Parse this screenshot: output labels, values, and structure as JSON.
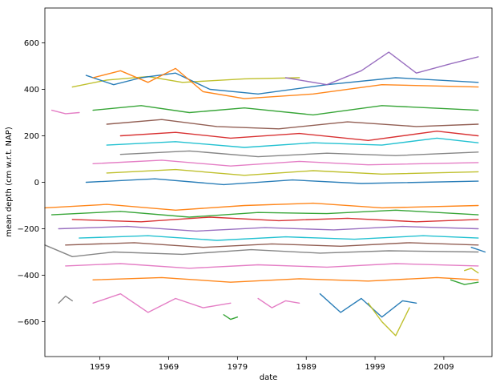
{
  "chart_data": {
    "type": "line",
    "xlabel": "date",
    "ylabel": "mean depth (cm w.r.t. NAP)",
    "xlim": [
      1951.0,
      2016.0
    ],
    "ylim": [
      -750,
      750
    ],
    "x_ticks": [
      {
        "value": 1959,
        "label": "1959"
      },
      {
        "value": 1969,
        "label": "1969"
      },
      {
        "value": 1979,
        "label": "1979"
      },
      {
        "value": 1989,
        "label": "1989"
      },
      {
        "value": 1999,
        "label": "1999"
      },
      {
        "value": 2009,
        "label": "2009"
      }
    ],
    "y_ticks": [
      {
        "value": -600,
        "label": "−600"
      },
      {
        "value": -400,
        "label": "−400"
      },
      {
        "value": -200,
        "label": "−200"
      },
      {
        "value": 0,
        "label": "0"
      },
      {
        "value": 200,
        "label": "200"
      },
      {
        "value": 400,
        "label": "400"
      },
      {
        "value": 600,
        "label": "600"
      }
    ],
    "grid": false,
    "legend": "none",
    "palette": [
      "#1f77b4",
      "#ff7f0e",
      "#2ca02c",
      "#d62728",
      "#9467bd",
      "#8c564b",
      "#e377c2",
      "#7f7f7f",
      "#bcbd22",
      "#17becf"
    ],
    "series": [
      {
        "color": "#e377c2",
        "x": [
          1952,
          1954,
          1956
        ],
        "y": [
          310,
          295,
          300
        ]
      },
      {
        "color": "#bcbd22",
        "x": [
          1955,
          1960,
          1966,
          1971,
          1980,
          1988
        ],
        "y": [
          410,
          440,
          455,
          430,
          445,
          450
        ]
      },
      {
        "color": "#1f77b4",
        "x": [
          1957,
          1961,
          1965,
          1970,
          1975,
          1982,
          1992,
          2002,
          2014
        ],
        "y": [
          460,
          420,
          450,
          470,
          400,
          380,
          420,
          450,
          430
        ]
      },
      {
        "color": "#ff7f0e",
        "x": [
          1958,
          1962,
          1966,
          1970,
          1974,
          1980,
          1990,
          2000,
          2014
        ],
        "y": [
          450,
          480,
          430,
          490,
          390,
          360,
          380,
          420,
          410
        ]
      },
      {
        "color": "#9467bd",
        "x": [
          1986,
          1992,
          1997,
          2001,
          2005,
          2010,
          2014
        ],
        "y": [
          450,
          420,
          480,
          560,
          470,
          510,
          540
        ]
      },
      {
        "color": "#2ca02c",
        "x": [
          1958,
          1965,
          1972,
          1980,
          1990,
          2000,
          2014
        ],
        "y": [
          310,
          330,
          300,
          320,
          290,
          330,
          310
        ]
      },
      {
        "color": "#8c564b",
        "x": [
          1960,
          1968,
          1976,
          1985,
          1995,
          2005,
          2014
        ],
        "y": [
          250,
          270,
          240,
          230,
          260,
          240,
          250
        ]
      },
      {
        "color": "#d62728",
        "x": [
          1962,
          1970,
          1978,
          1988,
          1998,
          2008,
          2014
        ],
        "y": [
          200,
          215,
          190,
          210,
          180,
          220,
          200
        ]
      },
      {
        "color": "#17becf",
        "x": [
          1960,
          1970,
          1980,
          1990,
          2000,
          2008,
          2014
        ],
        "y": [
          160,
          175,
          150,
          170,
          160,
          190,
          170
        ]
      },
      {
        "color": "#7f7f7f",
        "x": [
          1962,
          1972,
          1982,
          1992,
          2002,
          2014
        ],
        "y": [
          120,
          135,
          110,
          125,
          115,
          130
        ]
      },
      {
        "color": "#e377c2",
        "x": [
          1958,
          1968,
          1978,
          1988,
          1998,
          2014
        ],
        "y": [
          80,
          95,
          70,
          90,
          75,
          85
        ]
      },
      {
        "color": "#bcbd22",
        "x": [
          1960,
          1970,
          1980,
          1990,
          2000,
          2014
        ],
        "y": [
          40,
          55,
          30,
          50,
          35,
          45
        ]
      },
      {
        "color": "#1f77b4",
        "x": [
          1957,
          1967,
          1977,
          1987,
          1997,
          2014
        ],
        "y": [
          0,
          15,
          -10,
          10,
          -5,
          5
        ]
      },
      {
        "color": "#ff7f0e",
        "x": [
          1951,
          1960,
          1970,
          1980,
          1990,
          2000,
          2014
        ],
        "y": [
          -110,
          -95,
          -120,
          -100,
          -90,
          -110,
          -100
        ]
      },
      {
        "color": "#2ca02c",
        "x": [
          1952,
          1962,
          1972,
          1982,
          1992,
          2002,
          2014
        ],
        "y": [
          -140,
          -125,
          -150,
          -130,
          -135,
          -120,
          -140
        ]
      },
      {
        "color": "#d62728",
        "x": [
          1955,
          1965,
          1975,
          1985,
          1995,
          2005,
          2014
        ],
        "y": [
          -160,
          -170,
          -150,
          -165,
          -155,
          -170,
          -160
        ]
      },
      {
        "color": "#9467bd",
        "x": [
          1953,
          1963,
          1973,
          1983,
          1993,
          2003,
          2014
        ],
        "y": [
          -200,
          -190,
          -210,
          -195,
          -205,
          -190,
          -200
        ]
      },
      {
        "color": "#17becf",
        "x": [
          1956,
          1966,
          1976,
          1986,
          1996,
          2006,
          2014
        ],
        "y": [
          -240,
          -230,
          -250,
          -235,
          -245,
          -230,
          -240
        ]
      },
      {
        "color": "#8c564b",
        "x": [
          1954,
          1964,
          1974,
          1984,
          1994,
          2004,
          2014
        ],
        "y": [
          -270,
          -260,
          -280,
          -265,
          -275,
          -260,
          -270
        ]
      },
      {
        "color": "#7f7f7f",
        "x": [
          1951,
          1955,
          1961,
          1971,
          1981,
          1991,
          2001,
          2014
        ],
        "y": [
          -270,
          -320,
          -300,
          -310,
          -290,
          -305,
          -295,
          -300
        ]
      },
      {
        "color": "#e377c2",
        "x": [
          1954,
          1962,
          1972,
          1982,
          1992,
          2002,
          2014
        ],
        "y": [
          -360,
          -350,
          -370,
          -355,
          -365,
          -350,
          -360
        ]
      },
      {
        "color": "#ff7f0e",
        "x": [
          1958,
          1968,
          1978,
          1988,
          1998,
          2008,
          2014
        ],
        "y": [
          -420,
          -410,
          -430,
          -415,
          -425,
          -410,
          -420
        ]
      },
      {
        "color": "#7f7f7f",
        "x": [
          1953,
          1954,
          1955
        ],
        "y": [
          -520,
          -490,
          -510
        ]
      },
      {
        "color": "#e377c2",
        "x": [
          1958,
          1962,
          1966,
          1970,
          1974,
          1978
        ],
        "y": [
          -520,
          -480,
          -560,
          -500,
          -540,
          -520
        ]
      },
      {
        "color": "#2ca02c",
        "x": [
          1977,
          1978,
          1979
        ],
        "y": [
          -570,
          -590,
          -580
        ]
      },
      {
        "color": "#e377c2",
        "x": [
          1982,
          1984,
          1986,
          1988
        ],
        "y": [
          -500,
          -540,
          -510,
          -520
        ]
      },
      {
        "color": "#1f77b4",
        "x": [
          1991,
          1994,
          1997,
          2000,
          2003,
          2005
        ],
        "y": [
          -480,
          -560,
          -500,
          -580,
          -510,
          -520
        ]
      },
      {
        "color": "#bcbd22",
        "x": [
          1998,
          2000,
          2002,
          2004
        ],
        "y": [
          -520,
          -600,
          -660,
          -540
        ]
      },
      {
        "color": "#2ca02c",
        "x": [
          2010,
          2012,
          2014
        ],
        "y": [
          -420,
          -440,
          -430
        ]
      },
      {
        "color": "#bcbd22",
        "x": [
          2012,
          2013,
          2014
        ],
        "y": [
          -380,
          -370,
          -390
        ]
      },
      {
        "color": "#1f77b4",
        "x": [
          2013,
          2014,
          2015
        ],
        "y": [
          -280,
          -290,
          -300
        ]
      }
    ]
  }
}
